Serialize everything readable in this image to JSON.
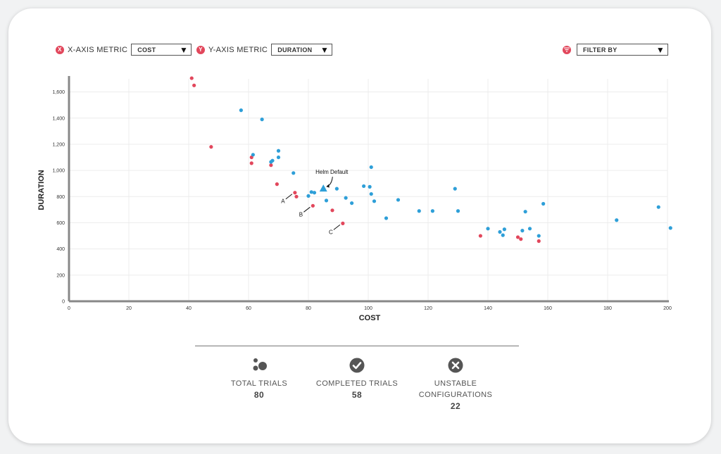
{
  "controls": {
    "x_metric": {
      "label": "X-AXIS METRIC",
      "badge": "X",
      "value": "COST"
    },
    "y_metric": {
      "label": "Y-AXIS METRIC",
      "badge": "Y",
      "value": "DURATION"
    },
    "filter": {
      "value": "FILTER BY",
      "icon": "filter-icon"
    }
  },
  "colors": {
    "red": "#e2475c",
    "blue": "#2e9fd8",
    "accent": "#e2475c"
  },
  "chart_data": {
    "type": "scatter",
    "xlabel": "COST",
    "ylabel": "DURATION",
    "xlim": [
      0,
      200
    ],
    "ylim": [
      0,
      1700
    ],
    "xticks": [
      0,
      20,
      40,
      60,
      80,
      100,
      120,
      140,
      160,
      180,
      200
    ],
    "yticks": [
      0,
      200,
      400,
      600,
      800,
      1000,
      1200,
      1400,
      1600
    ],
    "grid": true,
    "series": [
      {
        "color": "#e2475c",
        "points": [
          [
            41,
            1705
          ],
          [
            41.8,
            1650
          ],
          [
            47.5,
            1180
          ],
          [
            61,
            1100
          ],
          [
            61,
            1055
          ],
          [
            67.5,
            1040
          ],
          [
            69.5,
            895
          ],
          [
            75.5,
            830
          ],
          [
            76,
            800
          ],
          [
            81.5,
            730
          ],
          [
            88,
            695
          ],
          [
            91.5,
            595
          ],
          [
            137.5,
            500
          ],
          [
            150,
            490
          ],
          [
            151,
            475
          ],
          [
            157,
            460
          ]
        ]
      },
      {
        "color": "#2e9fd8",
        "points": [
          [
            57.5,
            1460
          ],
          [
            64.5,
            1390
          ],
          [
            61.5,
            1120
          ],
          [
            70,
            1150
          ],
          [
            70,
            1100
          ],
          [
            68,
            1075
          ],
          [
            67.5,
            1065
          ],
          [
            75,
            980
          ],
          [
            81,
            835
          ],
          [
            82,
            830
          ],
          [
            80,
            805
          ],
          [
            86,
            770
          ],
          [
            89.5,
            860
          ],
          [
            92.5,
            790
          ],
          [
            94.5,
            750
          ],
          [
            98.5,
            880
          ],
          [
            100.5,
            875
          ],
          [
            101,
            1025
          ],
          [
            101,
            820
          ],
          [
            102,
            765
          ],
          [
            106,
            635
          ],
          [
            110,
            775
          ],
          [
            117,
            690
          ],
          [
            121.5,
            690
          ],
          [
            129,
            860
          ],
          [
            130,
            690
          ],
          [
            140,
            555
          ],
          [
            144,
            530
          ],
          [
            145,
            505
          ],
          [
            145.5,
            550
          ],
          [
            151.5,
            540
          ],
          [
            152.5,
            685
          ],
          [
            154,
            555
          ],
          [
            157,
            500
          ],
          [
            158.5,
            745
          ],
          [
            183,
            620
          ],
          [
            197,
            720
          ],
          [
            201,
            560
          ]
        ]
      }
    ],
    "special": {
      "label": "Helm Default",
      "x": 85,
      "y": 860,
      "color": "#2e9fd8"
    },
    "annotations": [
      {
        "label": "A",
        "x": 75.5,
        "y": 830
      },
      {
        "label": "B",
        "x": 81.5,
        "y": 730
      },
      {
        "label": "C",
        "x": 91.5,
        "y": 595
      }
    ]
  },
  "stats": [
    {
      "icon": "dots-icon",
      "label_lines": [
        "TOTAL TRIALS"
      ],
      "value": "80"
    },
    {
      "icon": "check-circle-icon",
      "label_lines": [
        "COMPLETED TRIALS"
      ],
      "value": "58"
    },
    {
      "icon": "x-circle-icon",
      "label_lines": [
        "UNSTABLE",
        "CONFIGURATIONS"
      ],
      "value": "22"
    }
  ]
}
